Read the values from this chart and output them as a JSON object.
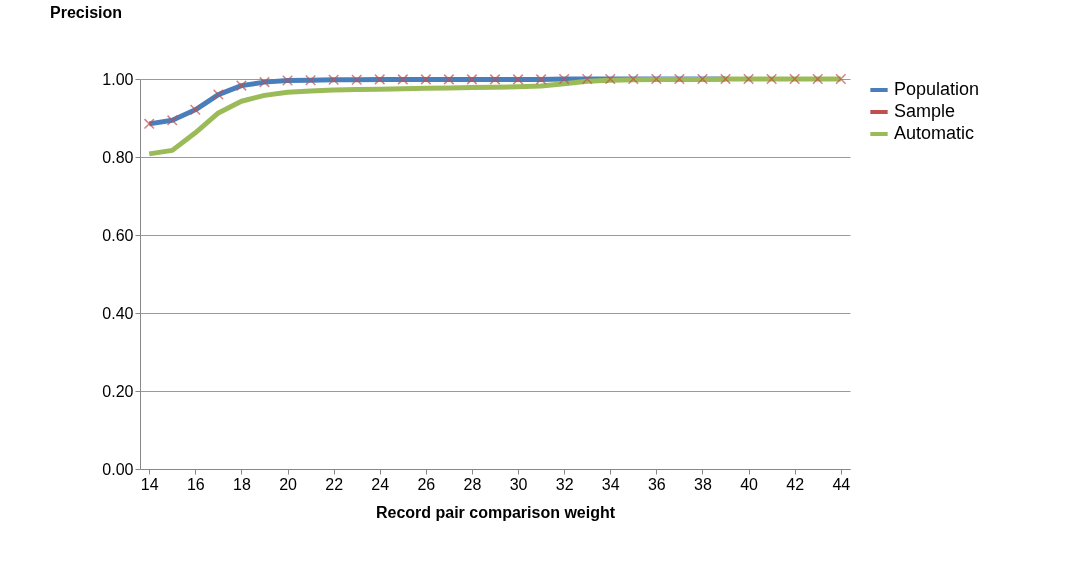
{
  "chart_data": {
    "type": "line",
    "title": "Precision",
    "xlabel": "Record pair comparison weight",
    "x": [
      14,
      15,
      16,
      17,
      18,
      19,
      20,
      21,
      22,
      23,
      24,
      25,
      26,
      27,
      28,
      29,
      30,
      31,
      32,
      33,
      34,
      35,
      36,
      37,
      38,
      39,
      40,
      41,
      42,
      43,
      44
    ],
    "xlim": [
      13.6,
      44.4
    ],
    "xticks": [
      14,
      16,
      18,
      20,
      22,
      24,
      26,
      28,
      30,
      32,
      34,
      36,
      38,
      40,
      42,
      44
    ],
    "ylim": [
      0,
      1.0
    ],
    "yticks": [
      {
        "value": 0,
        "label": "0.00"
      },
      {
        "value": 0.2,
        "label": "0.20"
      },
      {
        "value": 0.4,
        "label": "0.40"
      },
      {
        "value": 0.6,
        "label": "0.60"
      },
      {
        "value": 0.8,
        "label": "0.80"
      },
      {
        "value": 1.0,
        "label": "1.00"
      }
    ],
    "grid": "y",
    "legend": "right",
    "series": [
      {
        "name": "Population",
        "color": "#4a7ebb",
        "values": [
          0.885,
          0.894,
          0.921,
          0.96,
          0.983,
          0.992,
          0.996,
          0.997,
          0.998,
          0.998,
          0.999,
          0.999,
          0.999,
          0.999,
          0.999,
          0.999,
          0.999,
          0.999,
          1.0,
          1.0,
          1.0,
          1.0,
          1.0,
          1.0,
          1.0,
          1.0,
          null,
          null,
          null,
          null,
          null
        ]
      },
      {
        "name": "Sample",
        "color": "#c0504d",
        "type": "scatter",
        "marker": "cross",
        "values": [
          0.885,
          0.894,
          0.921,
          0.96,
          0.983,
          0.992,
          0.996,
          0.997,
          0.998,
          0.998,
          0.999,
          0.999,
          0.999,
          0.999,
          0.999,
          0.999,
          0.999,
          0.999,
          1.0,
          1.0,
          1.0,
          1.0,
          1.0,
          1.0,
          1.0,
          1.0,
          1.0,
          1.0,
          1.0,
          1.0,
          1.0
        ]
      },
      {
        "name": "Automatic",
        "color": "#9bbb59",
        "values": [
          0.808,
          0.817,
          0.862,
          0.913,
          0.943,
          0.958,
          0.966,
          0.969,
          0.972,
          0.973,
          0.974,
          0.975,
          0.976,
          0.977,
          0.978,
          0.979,
          0.98,
          0.982,
          0.988,
          0.994,
          0.997,
          0.998,
          0.999,
          0.999,
          0.999,
          1.0,
          1.0,
          1.0,
          1.0,
          1.0,
          1.0
        ]
      }
    ]
  }
}
